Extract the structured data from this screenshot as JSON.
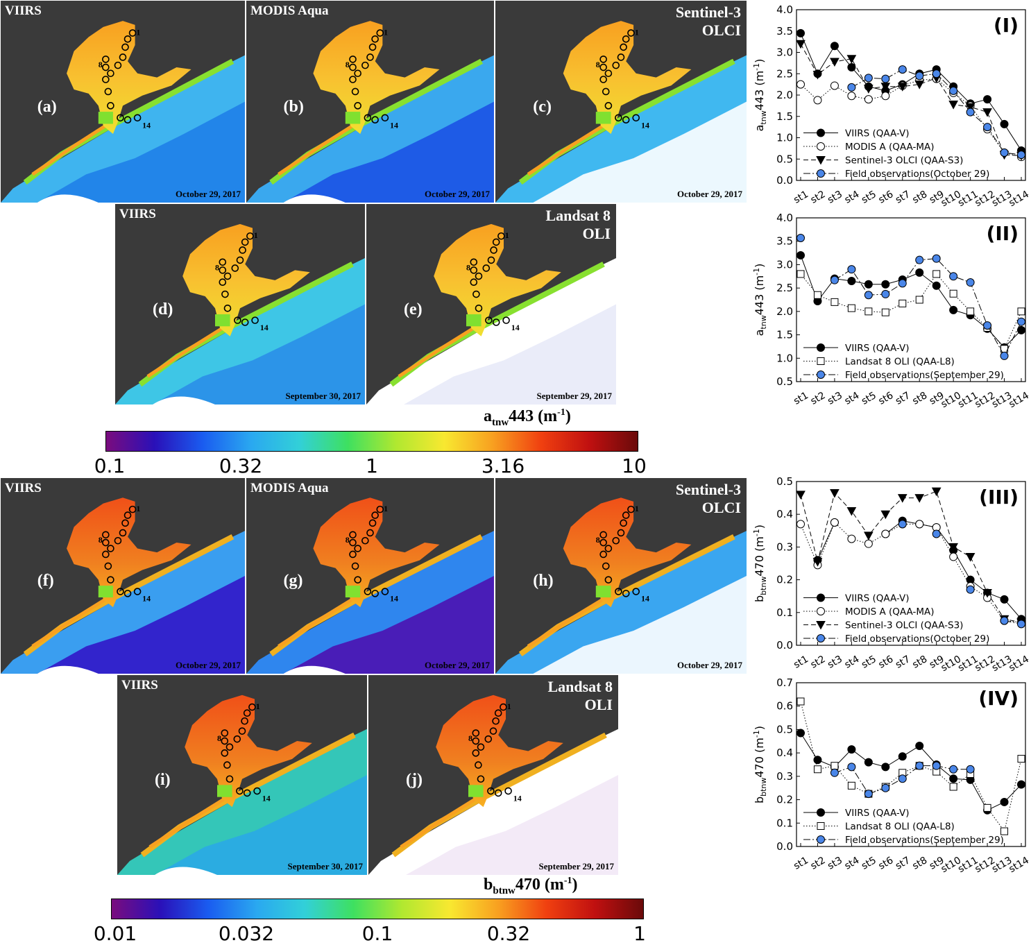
{
  "maps": [
    {
      "id": "a",
      "sensor": "VIIRS",
      "label": "(a)",
      "date": "October 29, 2017",
      "product": "atnw",
      "ocean": "#3fb4ef",
      "offshore": "#1f7fe8",
      "land_inset": true
    },
    {
      "id": "b",
      "sensor": "MODIS Aqua",
      "label": "(b)",
      "date": "October 29, 2017",
      "product": "atnw",
      "ocean": "#3aa8ee",
      "offshore": "#1c52e4",
      "land_inset": true
    },
    {
      "id": "c",
      "sensor": "Sentinel-3\nOLCI",
      "label": "(c)",
      "date": "October 29, 2017",
      "product": "atnw",
      "ocean": "#40b8f0",
      "offshore": "#ffffff",
      "land_inset": false
    },
    {
      "id": "d",
      "sensor": "VIIRS",
      "label": "(d)",
      "date": "September 30, 2017",
      "product": "atnw",
      "ocean": "#3ec6e6",
      "offshore": "#2a8ee8",
      "land_inset": true
    },
    {
      "id": "e",
      "sensor": "Landsat 8\nOLI",
      "label": "(e)",
      "date": "September 29, 2017",
      "product": "atnw",
      "ocean": "#ffffff",
      "offshore": "#e8eaf8",
      "land_inset": false
    },
    {
      "id": "f",
      "sensor": "VIIRS",
      "label": "(f)",
      "date": "October 29, 2017",
      "product": "bbtnw",
      "ocean": "#3a9ef0",
      "offshore": "#3216c8",
      "land_inset": true
    },
    {
      "id": "g",
      "sensor": "MODIS Aqua",
      "label": "(g)",
      "date": "October 29, 2017",
      "product": "bbtnw",
      "ocean": "#2f86ee",
      "offshore": "#4c12b0",
      "land_inset": true
    },
    {
      "id": "h",
      "sensor": "Sentinel-3\nOLCI",
      "label": "(h)",
      "date": "October 29, 2017",
      "product": "bbtnw",
      "ocean": "#3aa6f0",
      "offshore": "#ffffff",
      "land_inset": false
    },
    {
      "id": "i",
      "sensor": "VIIRS",
      "label": "(i)",
      "date": "September 30, 2017",
      "product": "bbtnw",
      "ocean": "#34c6b8",
      "offshore": "#2aa8e6",
      "land_inset": true
    },
    {
      "id": "j",
      "sensor": "Landsat 8\nOLI",
      "label": "(j)",
      "date": "September 29, 2017",
      "product": "bbtnw",
      "ocean": "#ffffff",
      "offshore": "#f2e8f6",
      "land_inset": false
    }
  ],
  "station_markers": {
    "first": "1",
    "mid": "8",
    "last": "14"
  },
  "colorbars": [
    {
      "id": "atnw",
      "title_main": "a",
      "title_sub": "tnw",
      "title_rest": "443 (m",
      "title_sup": "-1",
      "title_end": ")",
      "ticks": [
        "0.1",
        "0.32",
        "1",
        "3.16",
        "10"
      ]
    },
    {
      "id": "bbtnw",
      "title_main": "b",
      "title_sub": "btnw",
      "title_rest": "470 (m",
      "title_sup": "-1",
      "title_end": ")",
      "ticks": [
        "0.01",
        "0.032",
        "0.1",
        "0.32",
        "1"
      ]
    }
  ],
  "palette": [
    "#7a0c7e",
    "#2a10b8",
    "#1a5cf0",
    "#2aa8f0",
    "#32d0d8",
    "#3ee060",
    "#b0e830",
    "#f8e830",
    "#f8a020",
    "#f04010",
    "#c01010",
    "#6a0a0a"
  ],
  "chart_data": [
    {
      "type": "line",
      "panel": "(I)",
      "ylabel_main": "a",
      "ylabel_sub": "tnw",
      "ylabel_rest": "443 (m",
      "ylabel_sup": "-1",
      "ylabel_end": ")",
      "ylim": [
        0,
        4.0
      ],
      "yticks": [
        "0.0",
        "0.5",
        "1.0",
        "1.5",
        "2.0",
        "2.5",
        "3.0",
        "3.5",
        "4.0"
      ],
      "categories": [
        "st1",
        "st2",
        "st3",
        "st4",
        "st5",
        "st6",
        "st7",
        "st8",
        "st9",
        "st10",
        "st11",
        "st12",
        "st13",
        "st14"
      ],
      "series": [
        {
          "name": "VIIRS (QAA-V)",
          "marker": "circle",
          "fill": "#000000",
          "dash": "",
          "values": [
            3.45,
            2.5,
            3.15,
            2.65,
            2.2,
            2.1,
            2.25,
            2.5,
            2.6,
            2.2,
            1.8,
            1.9,
            1.32,
            0.7
          ]
        },
        {
          "name": "MODIS A (QAA-MA)",
          "marker": "circle",
          "fill": "#ffffff",
          "dash": "1.5,2.5",
          "values": [
            2.25,
            1.88,
            2.22,
            1.98,
            1.9,
            1.98,
            2.22,
            2.35,
            2.38,
            2.05,
            1.75,
            1.2,
            0.65,
            0.55
          ]
        },
        {
          "name": "Sentinel-3 OLCI (QAA-S3)",
          "marker": "triangle",
          "fill": "#000000",
          "dash": "7,4",
          "values": [
            3.2,
            2.48,
            2.78,
            2.85,
            2.15,
            2.2,
            2.2,
            2.25,
            2.4,
            1.78,
            1.72,
            1.6,
            0.6,
            0.58
          ]
        },
        {
          "name": "Field observations(October 29)",
          "marker": "circle",
          "fill": "#4a86e8",
          "dash": "10,3,2,3",
          "values": [
            null,
            null,
            null,
            2.18,
            2.4,
            2.38,
            2.6,
            2.45,
            2.5,
            2.1,
            1.6,
            1.25,
            0.65,
            0.6
          ]
        }
      ]
    },
    {
      "type": "line",
      "panel": "(II)",
      "ylabel_main": "a",
      "ylabel_sub": "tnw",
      "ylabel_rest": "443 (m",
      "ylabel_sup": "-1",
      "ylabel_end": ")",
      "ylim": [
        0.5,
        4.0
      ],
      "yticks": [
        "0.5",
        "1.0",
        "1.5",
        "2.0",
        "2.5",
        "3.0",
        "3.5",
        "4.0"
      ],
      "categories": [
        "st1",
        "st2",
        "st3",
        "st4",
        "st5",
        "st6",
        "st7",
        "st8",
        "st9",
        "st10",
        "st11",
        "st12",
        "st13",
        "st14"
      ],
      "series": [
        {
          "name": "VIIRS (QAA-V)",
          "marker": "circle",
          "fill": "#000000",
          "dash": "",
          "values": [
            3.2,
            2.22,
            2.7,
            2.65,
            2.58,
            2.58,
            2.68,
            2.83,
            2.55,
            2.03,
            1.92,
            1.63,
            1.23,
            1.6
          ]
        },
        {
          "name": "Landsat 8 OLI (QAA-L8)",
          "marker": "square",
          "fill": "#ffffff",
          "dash": "1.5,2.5",
          "values": [
            2.8,
            2.35,
            2.2,
            2.07,
            2.0,
            1.98,
            2.17,
            2.25,
            2.8,
            2.38,
            2.0,
            1.65,
            1.2,
            2.0
          ]
        },
        {
          "name": "Field observations(September 29)",
          "marker": "circle",
          "fill": "#4a86e8",
          "dash": "10,3,2,3",
          "values": [
            3.57,
            null,
            2.67,
            2.9,
            2.35,
            2.37,
            2.6,
            3.1,
            3.13,
            2.75,
            2.62,
            1.7,
            1.05,
            1.78
          ]
        }
      ]
    },
    {
      "type": "line",
      "panel": "(III)",
      "ylabel_main": "b",
      "ylabel_sub": "btnw",
      "ylabel_rest": "470 (m",
      "ylabel_sup": "-1",
      "ylabel_end": ")",
      "ylim": [
        0,
        0.5
      ],
      "yticks": [
        "0.0",
        "0.1",
        "0.2",
        "0.3",
        "0.4",
        "0.5"
      ],
      "categories": [
        "st1",
        "st2",
        "st3",
        "st4",
        "st5",
        "st6",
        "st7",
        "st8",
        "st9",
        "st10",
        "st11",
        "st12",
        "st13",
        "st14"
      ],
      "series": [
        {
          "name": "VIIRS (QAA-V)",
          "marker": "circle",
          "fill": "#000000",
          "dash": "",
          "values": [
            null,
            0.26,
            0.375,
            null,
            null,
            0.34,
            0.38,
            0.37,
            0.36,
            0.29,
            0.2,
            0.16,
            0.14,
            0.08
          ]
        },
        {
          "name": "MODIS A (QAA-MA)",
          "marker": "circle",
          "fill": "#ffffff",
          "dash": "1.5,2.5",
          "values": [
            0.37,
            0.245,
            0.375,
            0.325,
            0.31,
            0.34,
            0.37,
            0.37,
            0.36,
            0.27,
            0.18,
            0.145,
            0.075,
            0.07
          ]
        },
        {
          "name": "Sentinel-3 OLCI (QAA-S3)",
          "marker": "triangle",
          "fill": "#000000",
          "dash": "7,4",
          "values": [
            0.46,
            0.255,
            0.465,
            0.41,
            0.335,
            0.4,
            0.45,
            0.45,
            0.47,
            0.3,
            0.27,
            0.16,
            0.08,
            0.07
          ]
        },
        {
          "name": "Field observations(October 29)",
          "marker": "circle",
          "fill": "#4a86e8",
          "dash": "10,3,2,3",
          "values": [
            null,
            null,
            null,
            null,
            null,
            null,
            0.37,
            null,
            0.34,
            null,
            0.17,
            null,
            0.075,
            0.065
          ]
        }
      ]
    },
    {
      "type": "line",
      "panel": "(IV)",
      "ylabel_main": "b",
      "ylabel_sub": "btnw",
      "ylabel_rest": "470 (m",
      "ylabel_sup": "-1",
      "ylabel_end": ")",
      "ylim": [
        0,
        0.7
      ],
      "yticks": [
        "0.0",
        "0.1",
        "0.2",
        "0.3",
        "0.4",
        "0.5",
        "0.6",
        "0.7"
      ],
      "categories": [
        "st1",
        "st2",
        "st3",
        "st4",
        "st5",
        "st6",
        "st7",
        "st8",
        "st9",
        "st10",
        "st11",
        "st12",
        "st13",
        "st14"
      ],
      "series": [
        {
          "name": "VIIRS (QAA-V)",
          "marker": "circle",
          "fill": "#000000",
          "dash": "",
          "values": [
            0.485,
            0.37,
            0.34,
            0.415,
            0.36,
            0.34,
            0.385,
            0.43,
            0.35,
            0.29,
            0.285,
            0.155,
            0.19,
            0.265
          ]
        },
        {
          "name": "Landsat 8 OLI (QAA-L8)",
          "marker": "square",
          "fill": "#ffffff",
          "dash": "1.5,2.5",
          "values": [
            0.62,
            0.33,
            0.345,
            0.26,
            0.225,
            0.255,
            0.315,
            0.345,
            0.32,
            0.255,
            0.31,
            0.165,
            0.065,
            0.375
          ]
        },
        {
          "name": "Field observations(September 29)",
          "marker": "circle",
          "fill": "#4a86e8",
          "dash": "10,3,2,3",
          "values": [
            null,
            null,
            0.315,
            0.34,
            0.225,
            0.25,
            0.29,
            0.345,
            0.345,
            0.33,
            0.33,
            null,
            null,
            null
          ]
        }
      ]
    }
  ]
}
